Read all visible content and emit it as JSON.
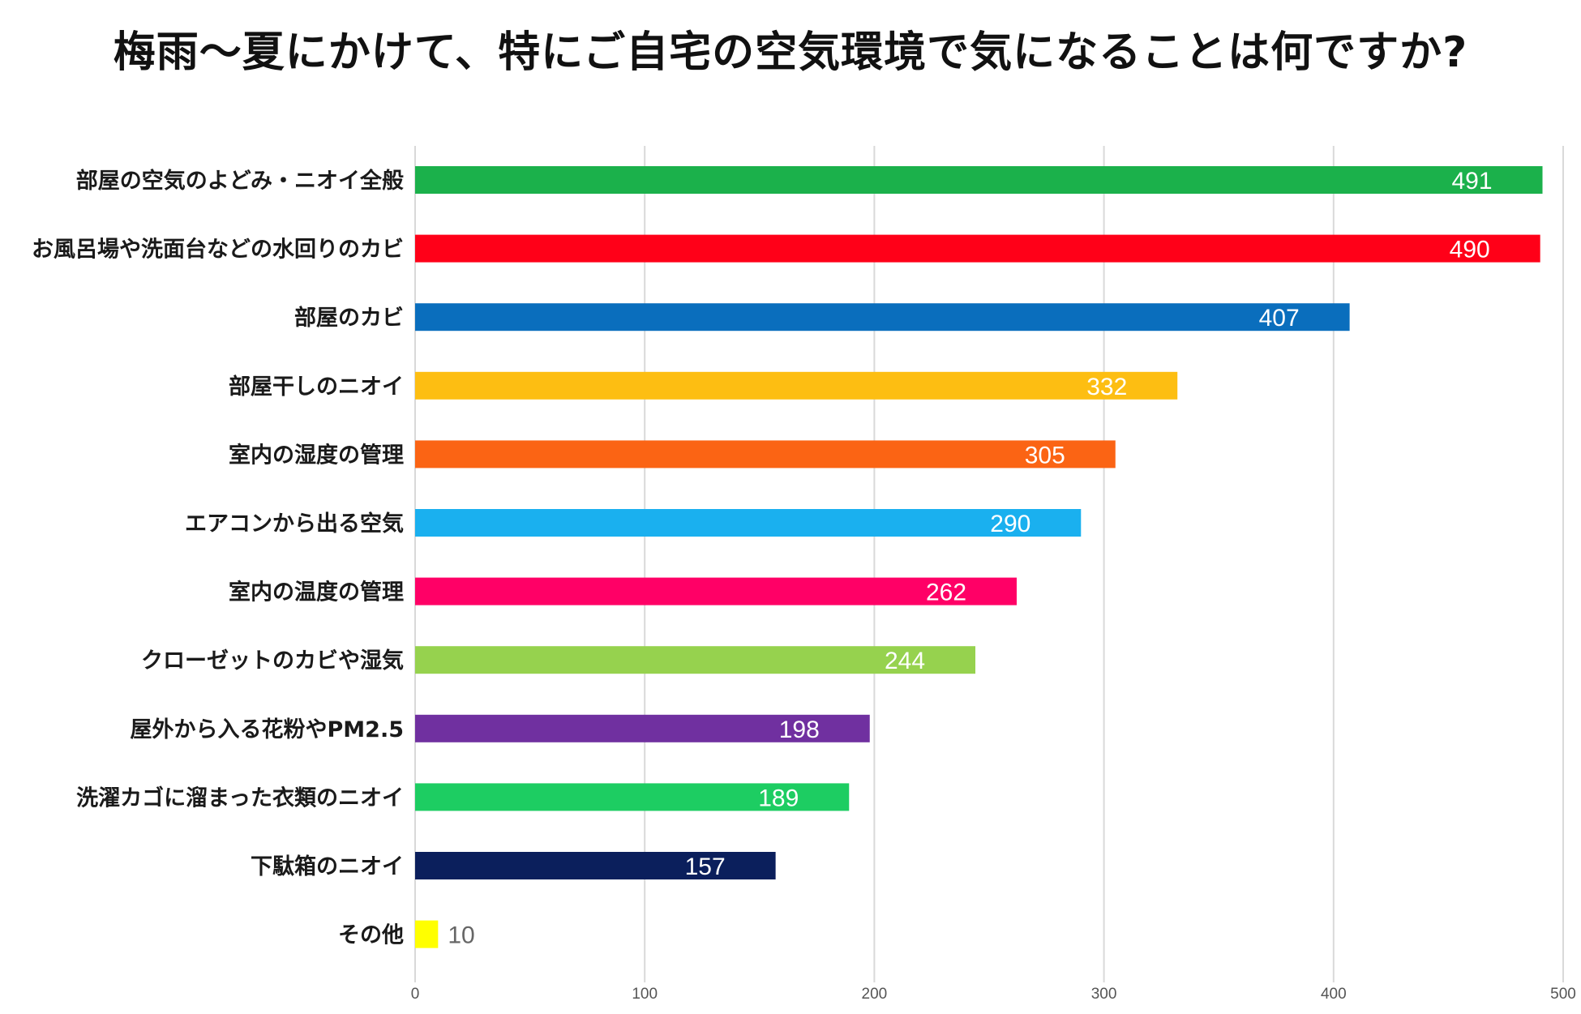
{
  "chart_data": {
    "type": "bar",
    "orientation": "horizontal",
    "title": "梅雨〜夏にかけて、特にご自宅の空気環境で気になることは何ですか?",
    "categories": [
      "部屋の空気のよどみ・ニオイ全般",
      "お風呂場や洗面台などの水回りのカビ",
      "部屋のカビ",
      "部屋干しのニオイ",
      "室内の湿度の管理",
      "エアコンから出る空気",
      "室内の温度の管理",
      "クローゼットのカビや湿気",
      "屋外から入る花粉やPM2.5",
      "洗濯カゴに溜まった衣類のニオイ",
      "下駄箱のニオイ",
      "その他"
    ],
    "values": [
      491,
      490,
      407,
      332,
      305,
      290,
      262,
      244,
      198,
      189,
      157,
      10
    ],
    "colors": [
      "#1bb14b",
      "#ff0018",
      "#0a6ebd",
      "#fdbe12",
      "#fb6414",
      "#1ab0ef",
      "#ff0066",
      "#96d24e",
      "#7030a0",
      "#1dcd62",
      "#0b1f5c",
      "#ffff00"
    ],
    "xlim": [
      0,
      500
    ],
    "xticks": [
      0,
      100,
      200,
      300,
      400,
      500
    ],
    "xlabel": "",
    "ylabel": "",
    "grid": true,
    "legend": "none"
  }
}
